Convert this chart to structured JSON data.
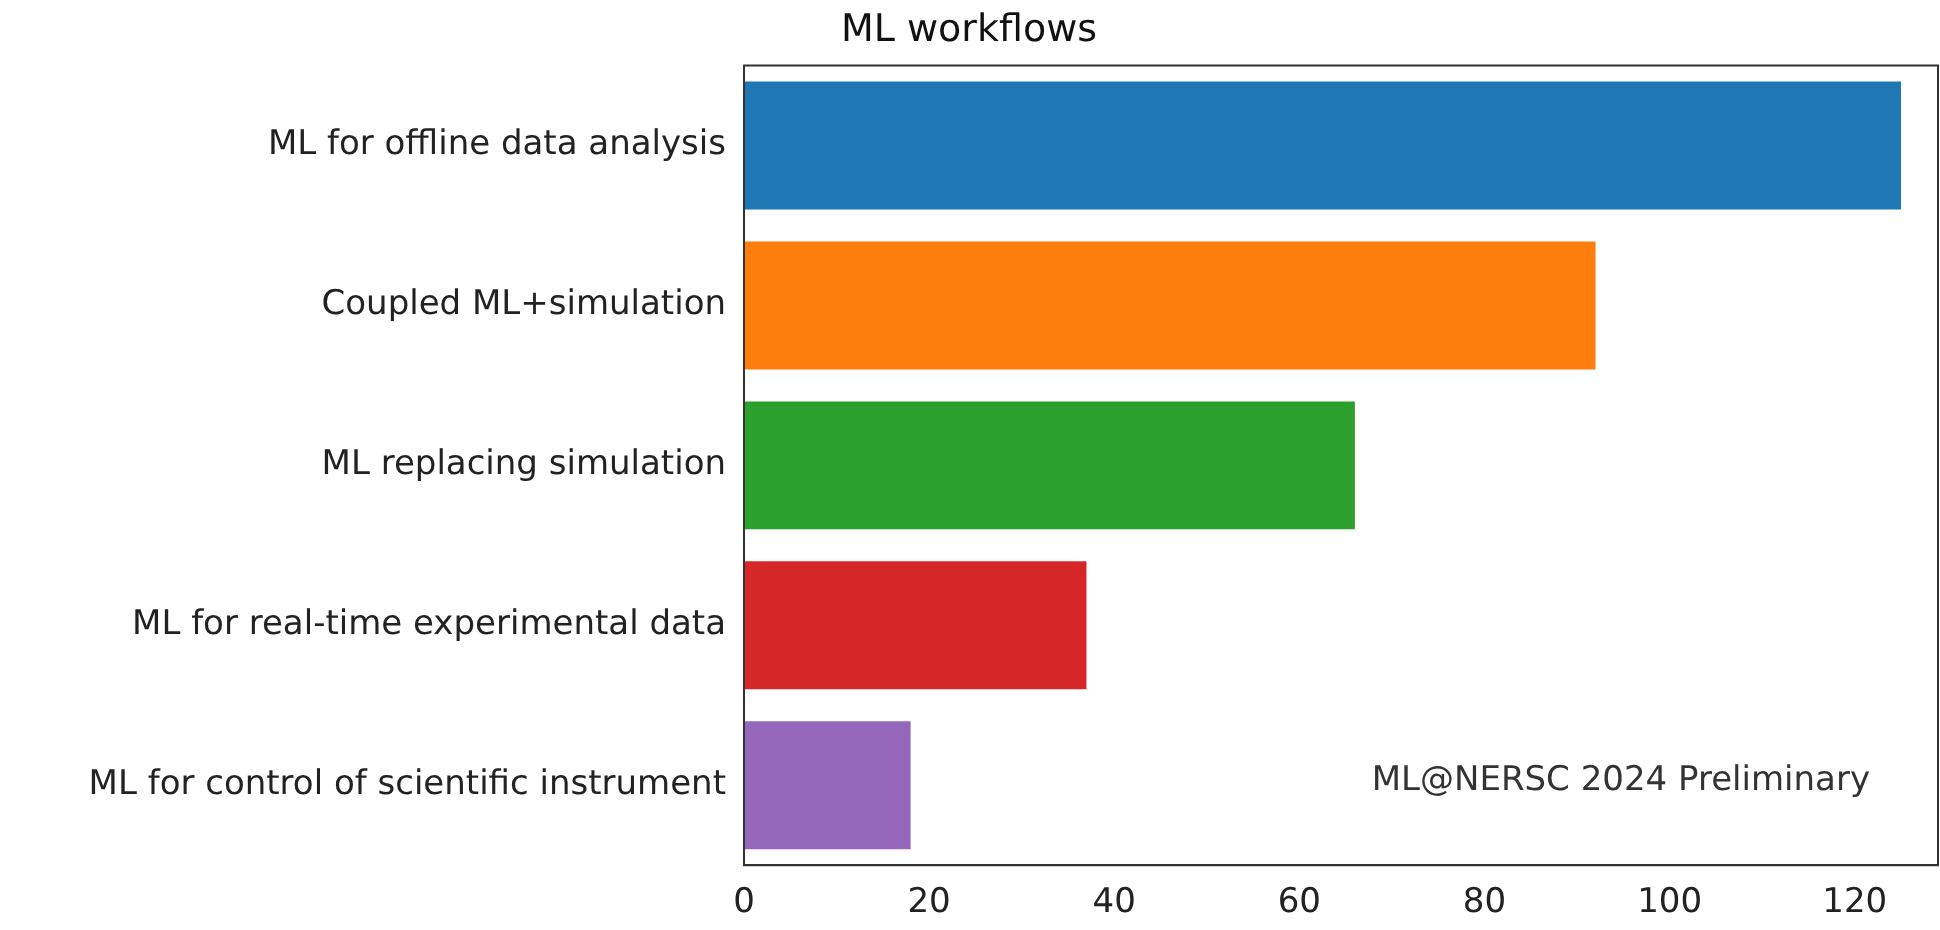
{
  "chart_data": {
    "type": "bar",
    "orientation": "horizontal",
    "title": "ML workflows",
    "categories": [
      "ML for offline data analysis",
      "Coupled ML+simulation",
      "ML replacing simulation",
      "ML for real-time experimental data",
      "ML for control of scientific instrument"
    ],
    "values": [
      125,
      92,
      66,
      37,
      18
    ],
    "colors": [
      "#1f77b4",
      "#ff7f0e",
      "#2ca02c",
      "#d62728",
      "#9467bd"
    ],
    "xlim": [
      0,
      129
    ],
    "xticks": [
      0,
      20,
      40,
      60,
      80,
      100,
      120
    ],
    "grid": false,
    "legend": false,
    "annotations": [
      "ML@NERSC 2024 Preliminary"
    ]
  }
}
